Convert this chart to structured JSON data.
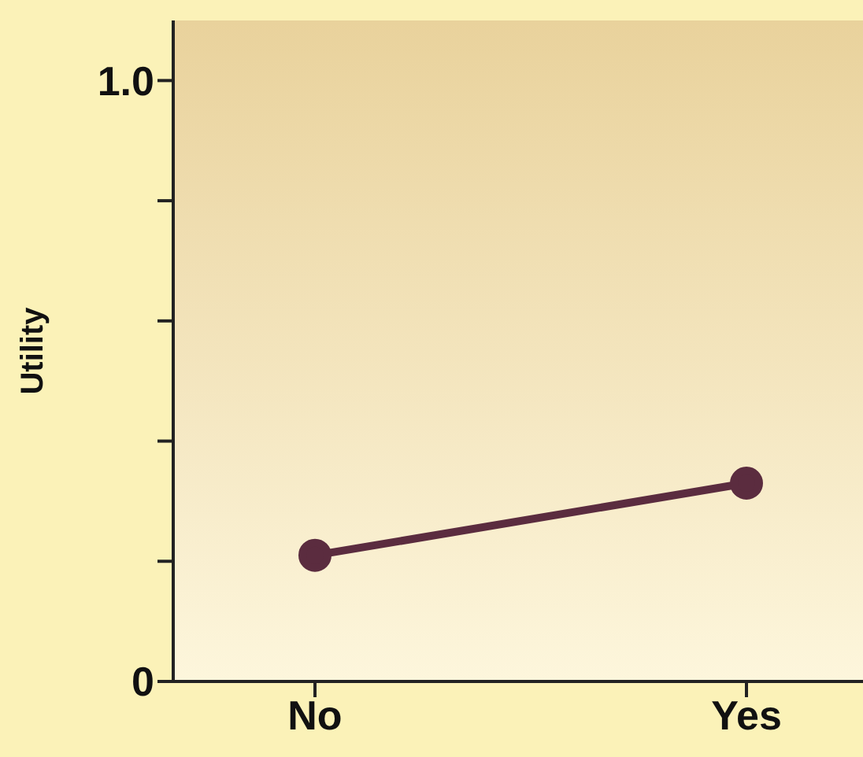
{
  "chart_data": {
    "type": "line",
    "ylabel": "Utility",
    "categories": [
      "No",
      "Yes"
    ],
    "series": [
      {
        "color": "#5b2c3f",
        "values": [
          0.21,
          0.33
        ]
      }
    ],
    "ylim": [
      0,
      1.1
    ],
    "yticks": [
      {
        "value": 0,
        "label": "0"
      },
      {
        "value": 0.2,
        "label": null
      },
      {
        "value": 0.4,
        "label": null
      },
      {
        "value": 0.6,
        "label": null
      },
      {
        "value": 0.8,
        "label": null
      },
      {
        "value": 1,
        "label": "1.0"
      }
    ],
    "grid": false,
    "legend": false,
    "marker": "circle",
    "line_style": "solid"
  }
}
